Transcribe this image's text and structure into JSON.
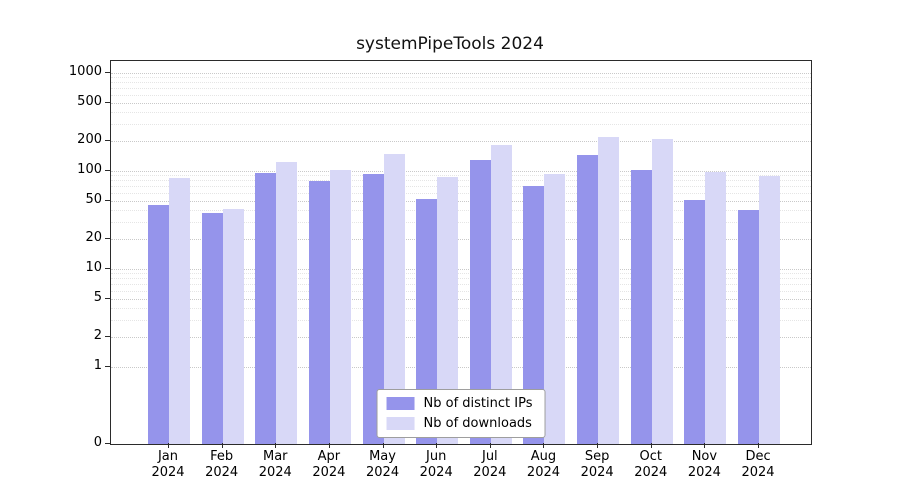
{
  "chart_data": {
    "type": "bar",
    "title": "systemPipeTools 2024",
    "categories": [
      "Jan",
      "Feb",
      "Mar",
      "Apr",
      "May",
      "Jun",
      "Jul",
      "Aug",
      "Sep",
      "Oct",
      "Nov",
      "Dec"
    ],
    "year": "2024",
    "series": [
      {
        "name": "Nb of distinct IPs",
        "color": "#9594eb",
        "values": [
          45,
          37,
          95,
          80,
          93,
          52,
          130,
          70,
          145,
          103,
          51,
          40
        ]
      },
      {
        "name": "Nb of downloads",
        "color": "#d8d8f7",
        "values": [
          85,
          41,
          125,
          103,
          150,
          87,
          185,
          93,
          225,
          210,
          97,
          88
        ]
      }
    ],
    "xlabel": "",
    "ylabel": "",
    "yscale": "log",
    "yticks": [
      0,
      1,
      2,
      5,
      10,
      20,
      50,
      100,
      200,
      500,
      1000
    ],
    "ylim": [
      0,
      1000
    ],
    "grid": true,
    "legend_position": "lower center"
  }
}
